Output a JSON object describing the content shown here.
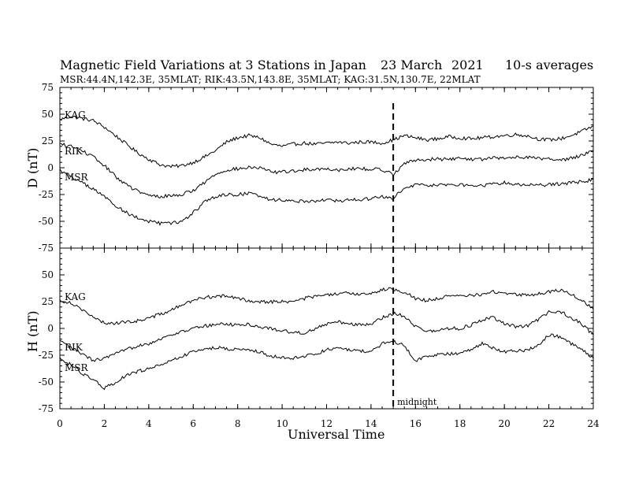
{
  "chart_data": {
    "type": "line",
    "title": "Magnetic Field Variations at 3 Stations in Japan",
    "date_text": "23 March",
    "year_text": "2021",
    "averaging_text": "10-s averages",
    "stations_info": "MSR:44.4N,142.3E, 35MLAT;  RIK:43.5N,143.8E, 35MLAT;  KAG:31.5N,130.7E, 22MLAT",
    "xlabel": "Universal Time",
    "xlim": [
      0,
      24
    ],
    "xticks": [
      "0",
      "2",
      "4",
      "6",
      "8",
      "10",
      "12",
      "14",
      "16",
      "18",
      "20",
      "22",
      "24"
    ],
    "grid": false,
    "annotation": {
      "text": "midnight",
      "x": 15
    },
    "panels": [
      {
        "id": "D",
        "ylabel": "D (nT)",
        "ylim": [
          -75,
          75
        ],
        "yticks": [
          "75",
          "50",
          "25",
          "0",
          "-25",
          "-50",
          "-75"
        ],
        "series": [
          {
            "name": "KAG",
            "x": [
              0,
              0.5,
              1,
              1.5,
              2,
              2.5,
              3,
              3.5,
              4,
              4.5,
              5,
              5.5,
              6,
              6.5,
              7,
              7.5,
              8,
              8.5,
              9,
              9.5,
              10,
              10.5,
              11,
              11.5,
              12,
              12.5,
              13,
              13.5,
              14,
              14.5,
              15,
              15.5,
              16,
              16.5,
              17,
              17.5,
              18,
              18.5,
              19,
              19.5,
              20,
              20.5,
              21,
              21.5,
              22,
              22.5,
              23,
              23.5,
              24
            ],
            "y": [
              45,
              48,
              46,
              44,
              38,
              30,
              22,
              14,
              8,
              3,
              1,
              2,
              5,
              10,
              16,
              24,
              28,
              30,
              28,
              22,
              20,
              22,
              23,
              22,
              23,
              24,
              23,
              24,
              24,
              23,
              26,
              30,
              28,
              26,
              27,
              29,
              28,
              27,
              28,
              29,
              30,
              31,
              30,
              27,
              26,
              27,
              30,
              34,
              39
            ]
          },
          {
            "name": "RIK",
            "x": [
              0,
              0.5,
              1,
              1.5,
              2,
              2.5,
              3,
              3.5,
              4,
              4.5,
              5,
              5.5,
              6,
              6.5,
              7,
              7.5,
              8,
              8.5,
              9,
              9.5,
              10,
              10.5,
              11,
              11.5,
              12,
              12.5,
              13,
              13.5,
              14,
              14.5,
              15,
              15.5,
              16,
              16.5,
              17,
              17.5,
              18,
              18.5,
              19,
              19.5,
              20,
              20.5,
              21,
              21.5,
              22,
              22.5,
              23,
              23.5,
              24
            ],
            "y": [
              22,
              20,
              16,
              10,
              2,
              -8,
              -16,
              -22,
              -26,
              -27,
              -26,
              -25,
              -21,
              -14,
              -6,
              -2,
              -1,
              0,
              0,
              -4,
              -4,
              -3,
              -2,
              -1,
              -1,
              -2,
              -1,
              -1,
              -1,
              -2,
              -6,
              4,
              7,
              8,
              8,
              8,
              9,
              8,
              8,
              9,
              9,
              10,
              10,
              9,
              8,
              7,
              9,
              12,
              16
            ]
          },
          {
            "name": "MSR",
            "x": [
              0,
              0.5,
              1,
              1.5,
              2,
              2.5,
              3,
              3.5,
              4,
              4.5,
              5,
              5.5,
              6,
              6.5,
              7,
              7.5,
              8,
              8.5,
              9,
              9.5,
              10,
              10.5,
              11,
              11.5,
              12,
              12.5,
              13,
              13.5,
              14,
              14.5,
              15,
              15.5,
              16,
              16.5,
              17,
              17.5,
              18,
              18.5,
              19,
              19.5,
              20,
              20.5,
              21,
              21.5,
              22,
              22.5,
              23,
              23.5,
              24
            ],
            "y": [
              -2,
              -8,
              -14,
              -20,
              -27,
              -35,
              -42,
              -47,
              -50,
              -52,
              -52,
              -50,
              -42,
              -32,
              -27,
              -25,
              -25,
              -24,
              -26,
              -30,
              -30,
              -31,
              -31,
              -31,
              -30,
              -31,
              -30,
              -30,
              -29,
              -27,
              -28,
              -20,
              -16,
              -16,
              -16,
              -16,
              -16,
              -16,
              -17,
              -15,
              -14,
              -15,
              -16,
              -16,
              -16,
              -15,
              -14,
              -13,
              -11
            ]
          }
        ]
      },
      {
        "id": "H",
        "ylabel": "H (nT)",
        "ylim": [
          -75,
          75
        ],
        "yticks": [
          "50",
          "25",
          "0",
          "-25",
          "-50",
          "-75"
        ],
        "series": [
          {
            "name": "KAG",
            "x": [
              0,
              0.5,
              1,
              1.5,
              2,
              2.5,
              3,
              3.5,
              4,
              4.5,
              5,
              5.5,
              6,
              6.5,
              7,
              7.5,
              8,
              8.5,
              9,
              9.5,
              10,
              10.5,
              11,
              11.5,
              12,
              12.5,
              13,
              13.5,
              14,
              14.5,
              15,
              15.5,
              16,
              16.5,
              17,
              17.5,
              18,
              18.5,
              19,
              19.5,
              20,
              20.5,
              21,
              21.5,
              22,
              22.5,
              23,
              23.5,
              24
            ],
            "y": [
              26,
              24,
              18,
              10,
              5,
              5,
              6,
              7,
              10,
              13,
              17,
              22,
              26,
              29,
              30,
              30,
              28,
              26,
              25,
              25,
              25,
              25,
              28,
              30,
              31,
              32,
              33,
              32,
              33,
              36,
              37,
              34,
              28,
              26,
              28,
              30,
              30,
              31,
              32,
              34,
              33,
              32,
              31,
              32,
              34,
              36,
              32,
              26,
              18
            ]
          },
          {
            "name": "RIK",
            "x": [
              0,
              0.5,
              1,
              1.5,
              2,
              2.5,
              3,
              3.5,
              4,
              4.5,
              5,
              5.5,
              6,
              6.5,
              7,
              7.5,
              8,
              8.5,
              9,
              9.5,
              10,
              10.5,
              11,
              11.5,
              12,
              12.5,
              13,
              13.5,
              14,
              14.5,
              15,
              15.5,
              16,
              16.5,
              17,
              17.5,
              18,
              18.5,
              19,
              19.5,
              20,
              20.5,
              21,
              21.5,
              22,
              22.5,
              23,
              23.5,
              24
            ],
            "y": [
              -12,
              -18,
              -24,
              -30,
              -28,
              -24,
              -20,
              -16,
              -14,
              -10,
              -6,
              -3,
              0,
              2,
              4,
              4,
              3,
              4,
              1,
              0,
              -2,
              -4,
              -4,
              0,
              4,
              6,
              5,
              3,
              4,
              10,
              14,
              12,
              2,
              -3,
              -2,
              0,
              0,
              3,
              8,
              10,
              4,
              2,
              2,
              8,
              15,
              16,
              10,
              4,
              -6
            ]
          },
          {
            "name": "MSR",
            "x": [
              0,
              0.5,
              1,
              1.5,
              2,
              2.5,
              3,
              3.5,
              4,
              4.5,
              5,
              5.5,
              6,
              6.5,
              7,
              7.5,
              8,
              8.5,
              9,
              9.5,
              10,
              10.5,
              11,
              11.5,
              12,
              12.5,
              13,
              13.5,
              14,
              14.5,
              15,
              15.5,
              16,
              16.5,
              17,
              17.5,
              18,
              18.5,
              19,
              19.5,
              20,
              20.5,
              21,
              21.5,
              22,
              22.5,
              23,
              23.5,
              24
            ],
            "y": [
              -28,
              -34,
              -42,
              -48,
              -56,
              -50,
              -44,
              -40,
              -38,
              -34,
              -30,
              -26,
              -22,
              -19,
              -18,
              -19,
              -20,
              -20,
              -22,
              -26,
              -27,
              -28,
              -26,
              -24,
              -20,
              -18,
              -20,
              -21,
              -22,
              -14,
              -12,
              -16,
              -30,
              -26,
              -24,
              -24,
              -23,
              -20,
              -14,
              -18,
              -22,
              -21,
              -20,
              -16,
              -6,
              -8,
              -14,
              -20,
              -28
            ]
          }
        ]
      }
    ]
  }
}
